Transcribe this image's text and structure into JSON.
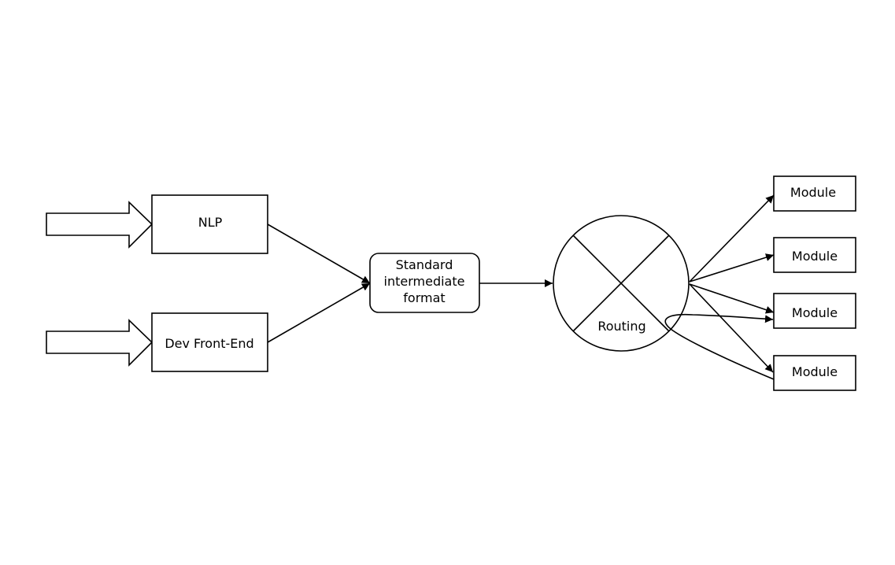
{
  "nodes": {
    "nlp": "NLP",
    "dev_front_end": "Dev Front-End",
    "standard_format": [
      "Standard",
      "intermediate",
      "format"
    ],
    "routing": "Routing",
    "modules": [
      "Module",
      "Module",
      "Module",
      "Module"
    ]
  },
  "colors": {
    "stroke": "#000000",
    "fill": "#ffffff"
  }
}
